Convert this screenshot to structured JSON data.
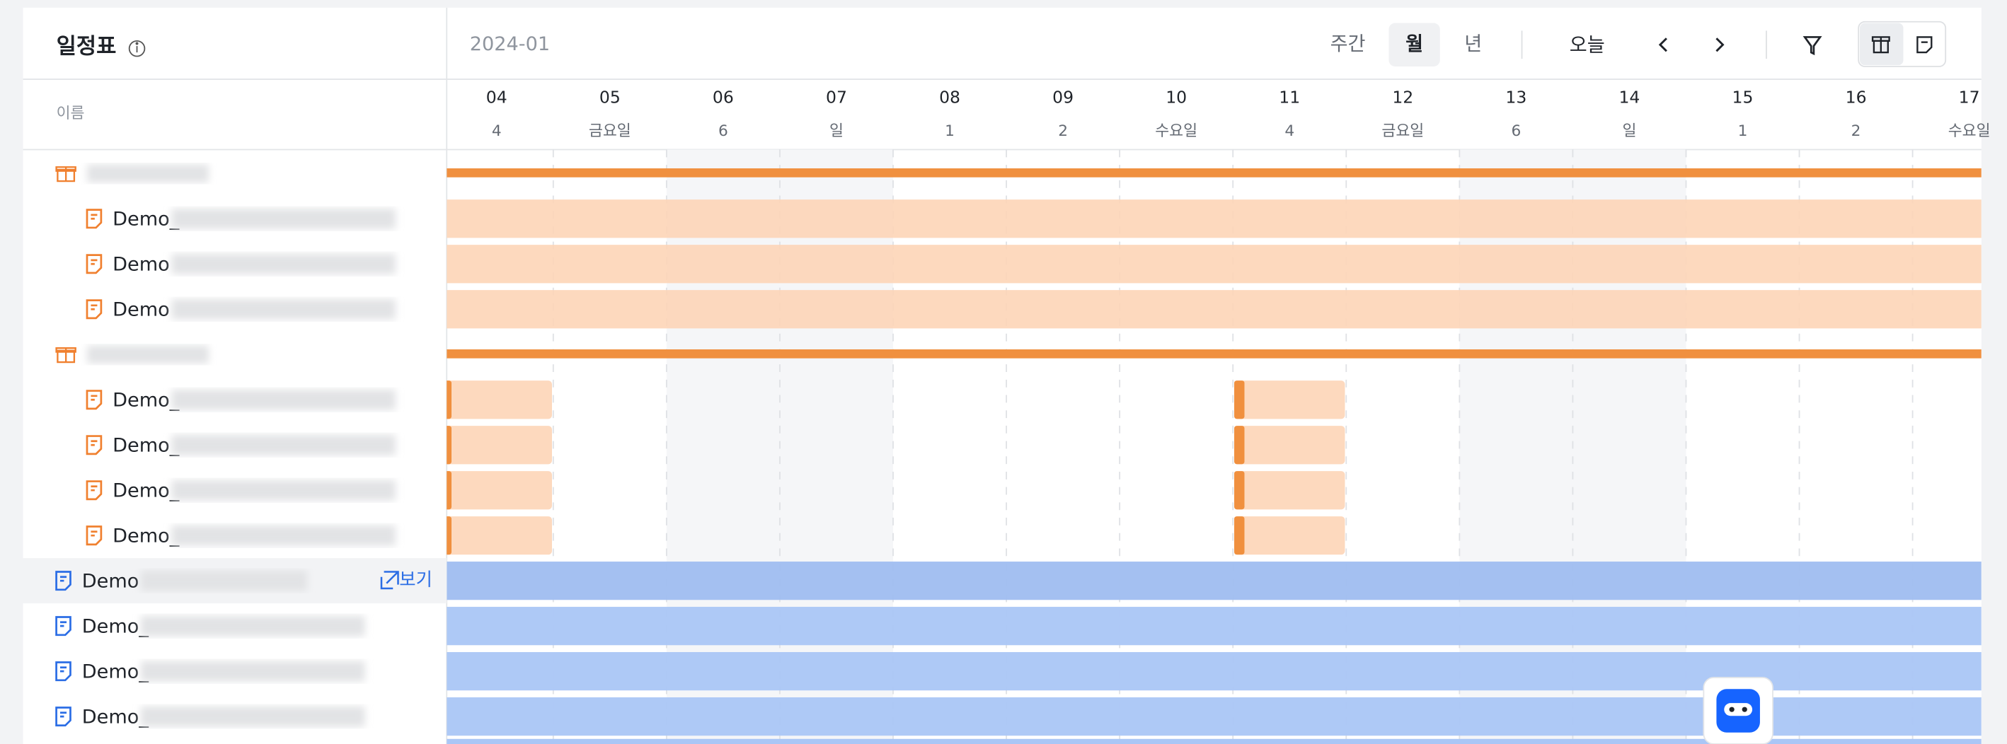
{
  "header": {
    "title": "일정표",
    "period": "2024-01",
    "views": [
      "주간",
      "월",
      "년"
    ],
    "active_view": "월",
    "today": "오늘"
  },
  "name_column": "이름",
  "days": [
    {
      "date": "04",
      "day": "4"
    },
    {
      "date": "05",
      "day": "금요일"
    },
    {
      "date": "06",
      "day": "6",
      "weekend": true
    },
    {
      "date": "07",
      "day": "일",
      "weekend": true
    },
    {
      "date": "08",
      "day": "1"
    },
    {
      "date": "09",
      "day": "2"
    },
    {
      "date": "10",
      "day": "수요일"
    },
    {
      "date": "11",
      "day": "4"
    },
    {
      "date": "12",
      "day": "금요일"
    },
    {
      "date": "13",
      "day": "6",
      "weekend": true
    },
    {
      "date": "14",
      "day": "일",
      "weekend": true
    },
    {
      "date": "15",
      "day": "1"
    },
    {
      "date": "16",
      "day": "2"
    },
    {
      "date": "17",
      "day": "수요일"
    }
  ],
  "rows": [
    {
      "kind": "group",
      "bars": [
        {
          "from": "04",
          "to": "17"
        }
      ]
    },
    {
      "kind": "task",
      "label": "Demo_",
      "bars": [
        {
          "from": "04",
          "to": "17"
        }
      ]
    },
    {
      "kind": "task",
      "label": "Demo",
      "bars": [
        {
          "from": "04",
          "to": "17"
        }
      ]
    },
    {
      "kind": "task",
      "label": "Demo",
      "bars": [
        {
          "from": "04",
          "to": "17"
        }
      ]
    },
    {
      "kind": "group",
      "bars": [
        {
          "from": "04",
          "to": "17"
        }
      ]
    },
    {
      "kind": "task",
      "label": "Demo_",
      "bars": [
        {
          "from": "04",
          "to": "04"
        },
        {
          "from": "11",
          "to": "11"
        }
      ]
    },
    {
      "kind": "task",
      "label": "Demo_",
      "bars": [
        {
          "from": "04",
          "to": "04"
        },
        {
          "from": "11",
          "to": "11"
        }
      ]
    },
    {
      "kind": "task",
      "label": "Demo_",
      "bars": [
        {
          "from": "04",
          "to": "04"
        },
        {
          "from": "11",
          "to": "11"
        }
      ]
    },
    {
      "kind": "task",
      "label": "Demo_",
      "bars": [
        {
          "from": "04",
          "to": "04"
        },
        {
          "from": "11",
          "to": "11"
        }
      ]
    },
    {
      "kind": "doc",
      "label": "Demo",
      "action": "보기",
      "bars": [
        {
          "from": "04",
          "to": "17"
        }
      ]
    },
    {
      "kind": "doc",
      "label": "Demo_",
      "bars": [
        {
          "from": "04",
          "to": "17"
        }
      ]
    },
    {
      "kind": "doc",
      "label": "Demo_",
      "bars": [
        {
          "from": "04",
          "to": "17"
        }
      ]
    },
    {
      "kind": "doc",
      "label": "Demo_",
      "bars": [
        {
          "from": "04",
          "to": "17"
        }
      ]
    }
  ]
}
